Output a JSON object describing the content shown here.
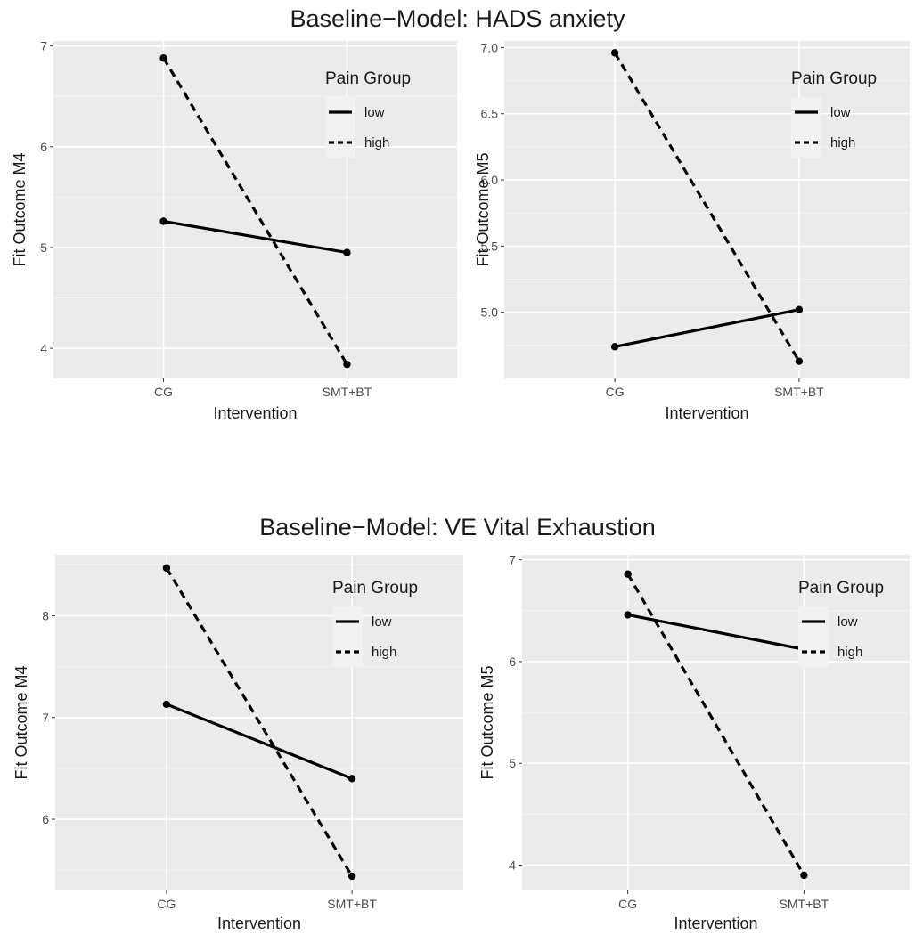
{
  "titles": {
    "top": "Baseline−Model: HADS anxiety",
    "bottom": "Baseline−Model: VE Vital Exhaustion"
  },
  "colors": {
    "panel_bg": "#ebebeb",
    "grid_major": "#ffffff",
    "line": "#000000"
  },
  "chart_data": [
    {
      "type": "line",
      "xlabel": "Intervention",
      "ylabel": "Fit Outcome M4",
      "categories": [
        "CG",
        "SMT+BT"
      ],
      "ylim": [
        3.7,
        7.05
      ],
      "yticks": [
        4,
        5,
        6,
        7
      ],
      "ytick_labels": [
        "4",
        "5",
        "6",
        "7"
      ],
      "legend": {
        "title": "Pain Group",
        "placement": "top-right"
      },
      "series": [
        {
          "name": "low",
          "linestyle": "solid",
          "values": [
            5.26,
            4.95
          ]
        },
        {
          "name": "high",
          "linestyle": "dashed",
          "values": [
            6.88,
            3.84
          ]
        }
      ]
    },
    {
      "type": "line",
      "xlabel": "Intervention",
      "ylabel": "Fit Outcome M5",
      "categories": [
        "CG",
        "SMT+BT"
      ],
      "ylim": [
        4.5,
        7.05
      ],
      "yticks": [
        5.0,
        5.5,
        6.0,
        6.5,
        7.0
      ],
      "ytick_labels": [
        "5.0",
        "5.5",
        "6.0",
        "6.5",
        "7.0"
      ],
      "legend": {
        "title": "Pain Group",
        "placement": "top-right"
      },
      "series": [
        {
          "name": "low",
          "linestyle": "solid",
          "values": [
            4.74,
            5.02
          ]
        },
        {
          "name": "high",
          "linestyle": "dashed",
          "values": [
            6.96,
            4.63
          ]
        }
      ]
    },
    {
      "type": "line",
      "xlabel": "Intervention",
      "ylabel": "Fit Outcome M4",
      "categories": [
        "CG",
        "SMT+BT"
      ],
      "ylim": [
        5.3,
        8.6
      ],
      "yticks": [
        6,
        7,
        8
      ],
      "ytick_labels": [
        "6",
        "7",
        "8"
      ],
      "legend": {
        "title": "Pain Group",
        "placement": "top-right"
      },
      "series": [
        {
          "name": "low",
          "linestyle": "solid",
          "values": [
            7.13,
            6.4
          ]
        },
        {
          "name": "high",
          "linestyle": "dashed",
          "values": [
            8.47,
            5.44
          ]
        }
      ]
    },
    {
      "type": "line",
      "xlabel": "Intervention",
      "ylabel": "Fit Outcome M5",
      "categories": [
        "CG",
        "SMT+BT"
      ],
      "ylim": [
        3.75,
        7.05
      ],
      "yticks": [
        4,
        5,
        6,
        7
      ],
      "ytick_labels": [
        "4",
        "5",
        "6",
        "7"
      ],
      "legend": {
        "title": "Pain Group",
        "placement": "top-right"
      },
      "series": [
        {
          "name": "low",
          "linestyle": "solid",
          "values": [
            6.46,
            6.12
          ]
        },
        {
          "name": "high",
          "linestyle": "dashed",
          "values": [
            6.86,
            3.9
          ]
        }
      ]
    }
  ]
}
